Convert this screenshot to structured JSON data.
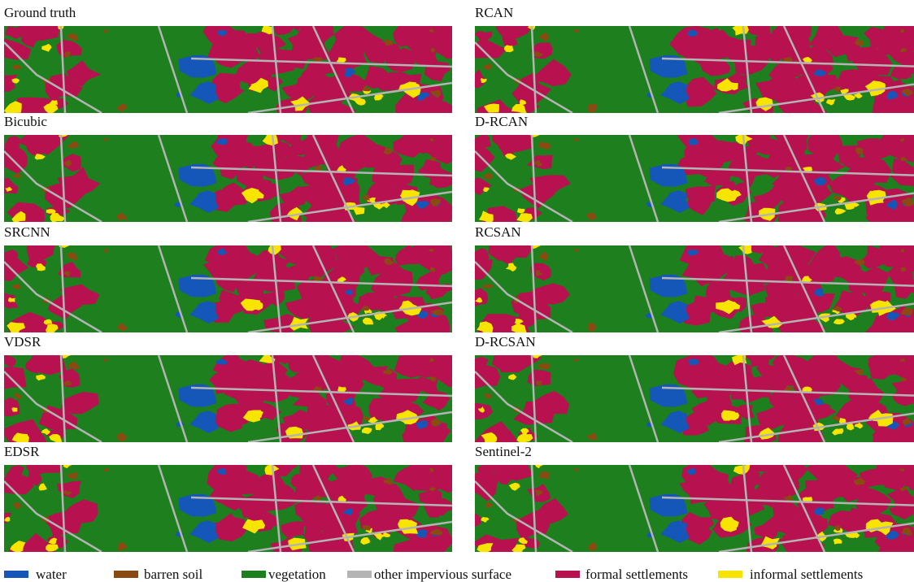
{
  "panels": [
    {
      "title": "Ground truth"
    },
    {
      "title": "RCAN"
    },
    {
      "title": "Bicubic"
    },
    {
      "title": "D-RCAN"
    },
    {
      "title": "SRCNN"
    },
    {
      "title": "RCSAN"
    },
    {
      "title": "VDSR"
    },
    {
      "title": "D-RCSAN"
    },
    {
      "title": "EDSR"
    },
    {
      "title": "Sentinel-2"
    }
  ],
  "legend": [
    {
      "label": "water",
      "color": "#1557b8"
    },
    {
      "label": "barren soil",
      "color": "#8a4a12"
    },
    {
      "label": "vegetation",
      "color": "#1d7f1d"
    },
    {
      "label": "other impervious surface",
      "color": "#b4b4b4"
    },
    {
      "label": "formal settlements",
      "color": "#b7124f"
    },
    {
      "label": "informal settlements",
      "color": "#f7e400"
    }
  ]
}
